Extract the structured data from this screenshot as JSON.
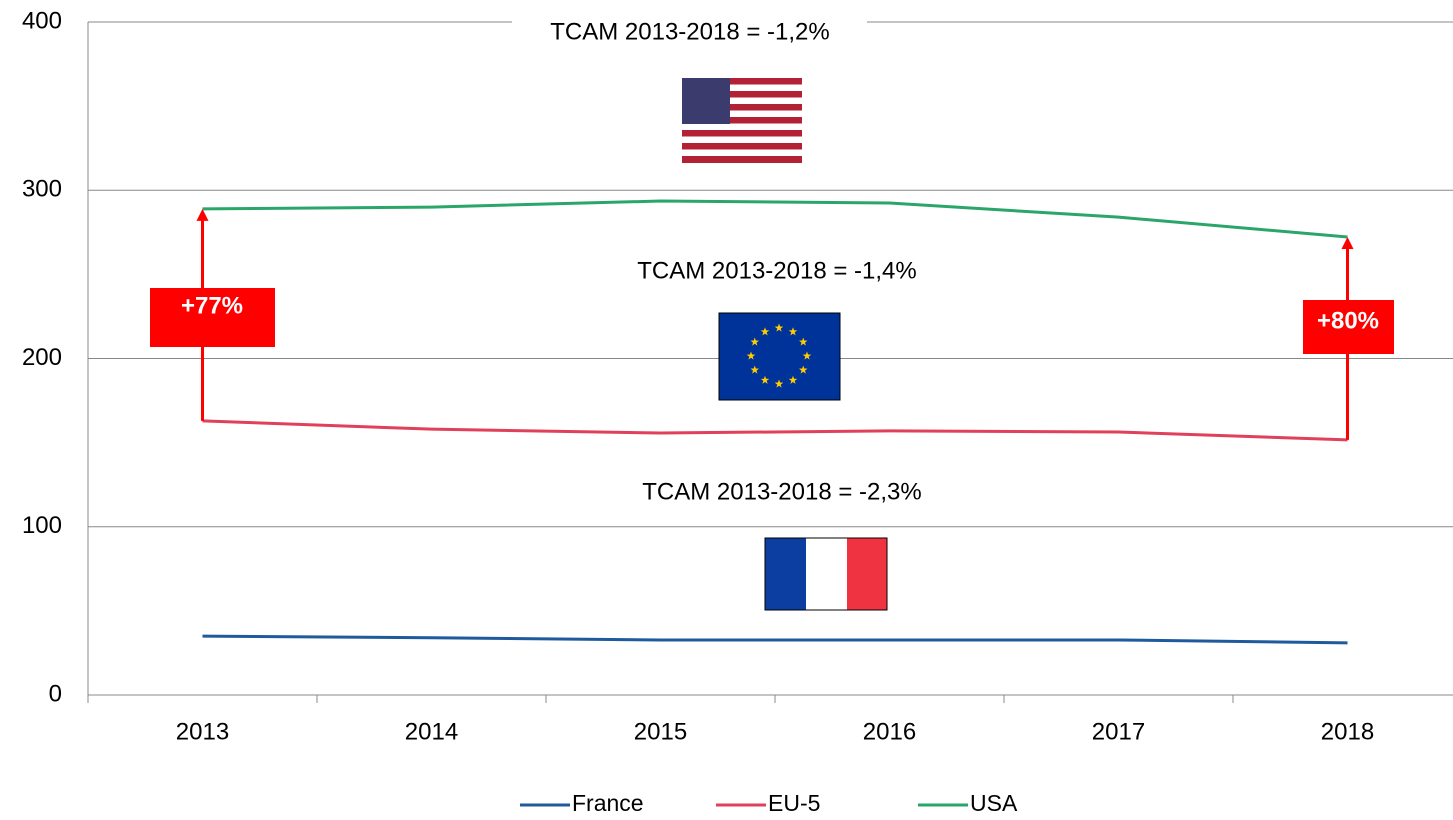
{
  "chart_data": {
    "type": "line",
    "categories": [
      "2013",
      "2014",
      "2015",
      "2016",
      "2017",
      "2018"
    ],
    "series": [
      {
        "name": "France",
        "color": "#1f5a9c",
        "values": [
          35,
          34,
          32.7,
          32.7,
          32.7,
          31
        ]
      },
      {
        "name": "EU-5",
        "color": "#e0405a",
        "values": [
          162.9,
          158,
          155.7,
          157,
          156.3,
          151.6
        ]
      },
      {
        "name": "USA",
        "color": "#2aa66a",
        "values": [
          288.9,
          290,
          293.6,
          292.4,
          284,
          272.2
        ]
      }
    ],
    "ylim": [
      0,
      400
    ],
    "yticks": [
      0,
      100,
      200,
      300,
      400
    ],
    "grid": true,
    "legend": "bottom",
    "annotations": [
      "TCAM 2013-2018 = -1,2%",
      "TCAM 2013-2018 = -1,4%",
      "TCAM 2013-2018 = -2,3%",
      "+77%",
      "+80%"
    ]
  }
}
